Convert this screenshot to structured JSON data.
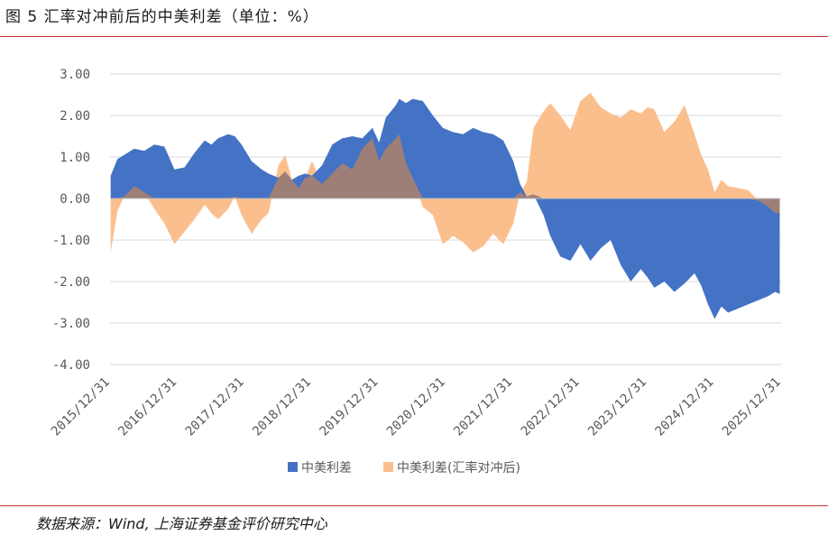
{
  "figure": {
    "title": "图 5 汇率对冲前后的中美利差（单位：%）",
    "source": "数据来源：Wind, 上海证券基金评价研究中心"
  },
  "chart_data": {
    "type": "area",
    "title": "汇率对冲前后的中美利差（单位：%）",
    "xlabel": "",
    "ylabel": "",
    "ylim": [
      -4,
      3
    ],
    "yticks": [
      3,
      2,
      1,
      0,
      -1,
      -2,
      -3,
      -4
    ],
    "ytick_labels": [
      "3.00",
      "2.00",
      "1.00",
      "0.00",
      "-1.00",
      "-2.00",
      "-3.00",
      "-4.00"
    ],
    "x_start": 2015.99,
    "x_end": 2025.99,
    "xticks": [
      2015.99,
      2016.99,
      2017.99,
      2018.99,
      2019.99,
      2020.99,
      2021.99,
      2022.99,
      2023.99,
      2024.99,
      2025.99
    ],
    "xtick_labels": [
      "2015/12/31",
      "2016/12/31",
      "2017/12/31",
      "2018/12/31",
      "2019/12/31",
      "2020/12/31",
      "2021/12/31",
      "2022/12/31",
      "2023/12/31",
      "2024/12/31",
      "2025/12/31"
    ],
    "grid": true,
    "legend_position": "bottom",
    "colors": {
      "spread": "#4472c4",
      "hedged": "#fbbf8e",
      "overlap": "#9e7f78",
      "grid": "#d9d9d9",
      "axis": "#bfbfbf",
      "text": "#595959"
    },
    "series": [
      {
        "name": "中美利差",
        "x": [
          2016.0,
          2016.1,
          2016.2,
          2016.35,
          2016.5,
          2016.65,
          2016.8,
          2016.95,
          2017.1,
          2017.25,
          2017.4,
          2017.5,
          2017.6,
          2017.75,
          2017.85,
          2017.95,
          2018.1,
          2018.25,
          2018.35,
          2018.5,
          2018.6,
          2018.7,
          2018.8,
          2018.9,
          2019.0,
          2019.15,
          2019.3,
          2019.45,
          2019.6,
          2019.75,
          2019.9,
          2020.0,
          2020.1,
          2020.25,
          2020.3,
          2020.4,
          2020.5,
          2020.65,
          2020.8,
          2020.95,
          2021.1,
          2021.25,
          2021.4,
          2021.55,
          2021.7,
          2021.85,
          2022.0,
          2022.1,
          2022.2,
          2022.3,
          2022.45,
          2022.55,
          2022.7,
          2022.85,
          2023.0,
          2023.15,
          2023.3,
          2023.45,
          2023.6,
          2023.75,
          2023.9,
          2024.0,
          2024.1,
          2024.25,
          2024.4,
          2024.55,
          2024.7,
          2024.8,
          2024.9,
          2025.0,
          2025.1,
          2025.2,
          2025.35,
          2025.5,
          2025.65,
          2025.8,
          2025.9,
          2025.97
        ],
        "values": [
          0.55,
          0.95,
          1.05,
          1.2,
          1.15,
          1.3,
          1.25,
          0.7,
          0.75,
          1.1,
          1.4,
          1.3,
          1.45,
          1.55,
          1.5,
          1.3,
          0.9,
          0.7,
          0.6,
          0.5,
          0.65,
          0.45,
          0.55,
          0.6,
          0.55,
          0.8,
          1.3,
          1.45,
          1.5,
          1.45,
          1.7,
          1.35,
          1.95,
          2.25,
          2.4,
          2.3,
          2.4,
          2.35,
          2.0,
          1.7,
          1.6,
          1.55,
          1.7,
          1.6,
          1.55,
          1.4,
          0.9,
          0.35,
          0.05,
          0.1,
          -0.4,
          -0.9,
          -1.4,
          -1.5,
          -1.1,
          -1.5,
          -1.2,
          -1.0,
          -1.6,
          -2.0,
          -1.7,
          -1.9,
          -2.15,
          -2.0,
          -2.25,
          -2.05,
          -1.8,
          -2.1,
          -2.55,
          -2.9,
          -2.6,
          -2.75,
          -2.65,
          -2.55,
          -2.45,
          -2.35,
          -2.25,
          -2.3
        ]
      },
      {
        "name": "中美利差(汇率对冲后)",
        "x": [
          2016.0,
          2016.1,
          2016.2,
          2016.35,
          2016.5,
          2016.65,
          2016.8,
          2016.95,
          2017.1,
          2017.25,
          2017.4,
          2017.5,
          2017.6,
          2017.75,
          2017.85,
          2017.95,
          2018.1,
          2018.25,
          2018.35,
          2018.5,
          2018.6,
          2018.7,
          2018.8,
          2018.9,
          2019.0,
          2019.15,
          2019.3,
          2019.45,
          2019.6,
          2019.75,
          2019.9,
          2020.0,
          2020.1,
          2020.25,
          2020.3,
          2020.4,
          2020.5,
          2020.65,
          2020.8,
          2020.95,
          2021.1,
          2021.25,
          2021.4,
          2021.55,
          2021.7,
          2021.85,
          2022.0,
          2022.1,
          2022.2,
          2022.3,
          2022.45,
          2022.55,
          2022.7,
          2022.85,
          2023.0,
          2023.15,
          2023.3,
          2023.45,
          2023.6,
          2023.75,
          2023.9,
          2024.0,
          2024.1,
          2024.25,
          2024.4,
          2024.55,
          2024.7,
          2024.8,
          2024.9,
          2025.0,
          2025.1,
          2025.2,
          2025.35,
          2025.5,
          2025.65,
          2025.8,
          2025.9,
          2025.97
        ],
        "values": [
          -1.3,
          -0.3,
          0.05,
          0.3,
          0.15,
          -0.25,
          -0.6,
          -1.1,
          -0.8,
          -0.5,
          -0.15,
          -0.35,
          -0.5,
          -0.25,
          0.05,
          -0.4,
          -0.85,
          -0.5,
          -0.35,
          0.8,
          1.05,
          0.45,
          0.25,
          0.5,
          0.9,
          0.35,
          0.6,
          0.85,
          0.7,
          1.2,
          1.45,
          0.9,
          1.2,
          1.45,
          1.55,
          0.85,
          0.5,
          -0.2,
          -0.4,
          -1.1,
          -0.9,
          -1.05,
          -1.3,
          -1.15,
          -0.85,
          -1.1,
          -0.6,
          0.15,
          0.4,
          1.7,
          2.1,
          2.3,
          2.0,
          1.65,
          2.35,
          2.55,
          2.2,
          2.05,
          1.95,
          2.15,
          2.05,
          2.2,
          2.15,
          1.6,
          1.85,
          2.25,
          1.55,
          1.05,
          0.7,
          0.15,
          0.45,
          0.3,
          0.25,
          0.2,
          -0.05,
          -0.2,
          -0.35,
          -0.35
        ]
      }
    ]
  }
}
